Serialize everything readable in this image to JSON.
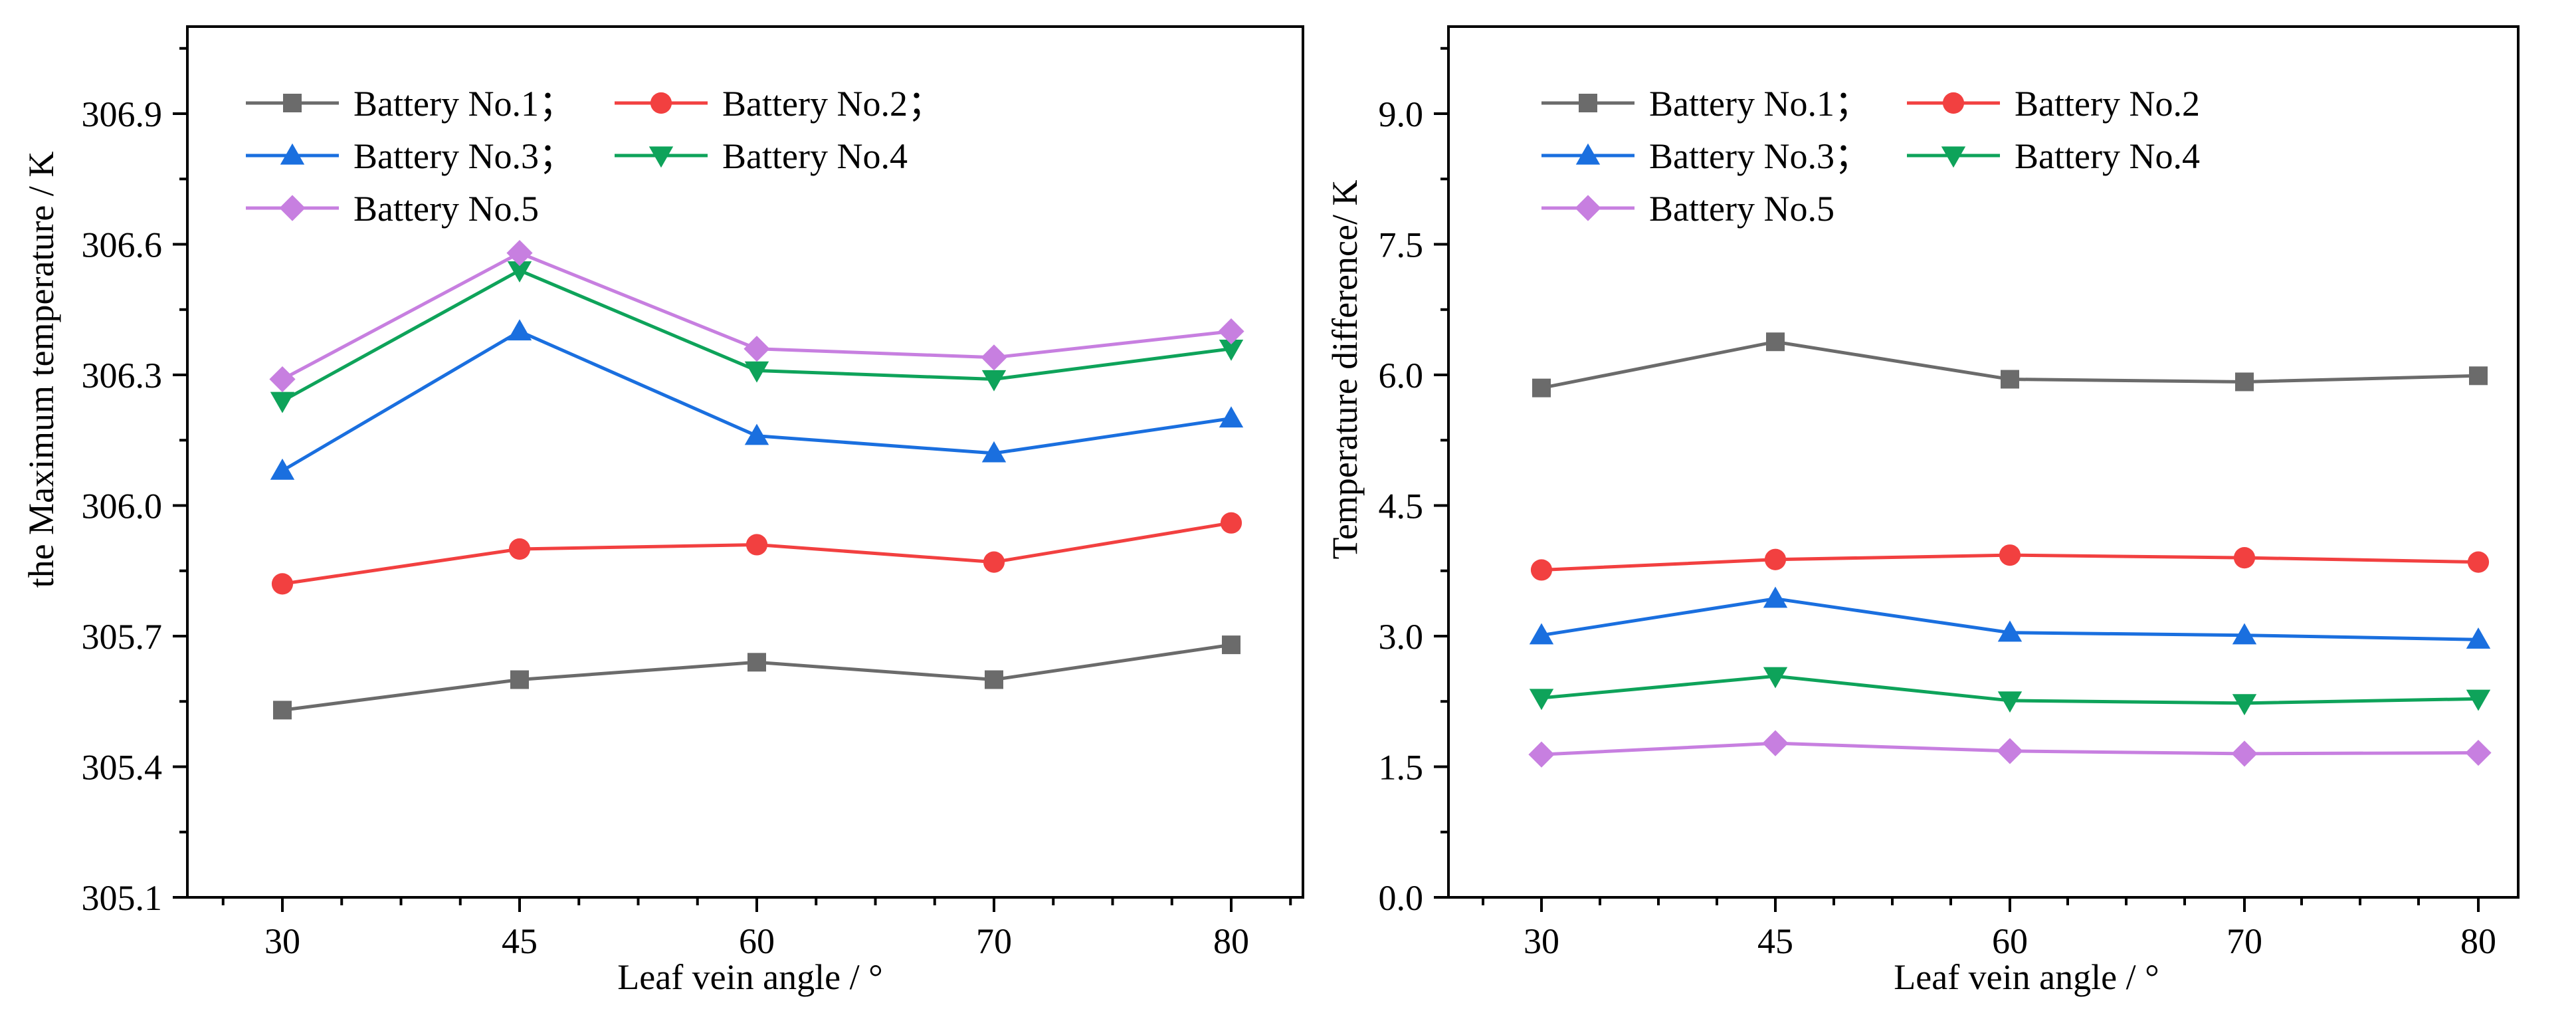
{
  "chart_data": [
    {
      "type": "line",
      "title": "",
      "xlabel": "Leaf vein angle / °",
      "ylabel": "the Maximum temperature / K",
      "categories": [
        "30",
        "45",
        "60",
        "70",
        "80"
      ],
      "ylim": [
        305.1,
        307.1
      ],
      "yticks": [
        305.1,
        305.4,
        305.7,
        306.0,
        306.3,
        306.6,
        306.9
      ],
      "ytick_labels": [
        "305.1",
        "305.4",
        "305.7",
        "306.0",
        "306.3",
        "306.6",
        "306.9"
      ],
      "legend_position": "top-left",
      "series": [
        {
          "name": "Battery No.1；",
          "color": "#6b6b6b",
          "marker": "square",
          "values": [
            305.53,
            305.6,
            305.64,
            305.6,
            305.68
          ]
        },
        {
          "name": "Battery No.2；",
          "color": "#f24040",
          "marker": "circle",
          "values": [
            305.82,
            305.9,
            305.91,
            305.87,
            305.96
          ]
        },
        {
          "name": "Battery No.3；",
          "color": "#1a6fdf",
          "marker": "triangle-up",
          "values": [
            306.08,
            306.4,
            306.16,
            306.12,
            306.2
          ]
        },
        {
          "name": "Battery No.4",
          "color": "#0ea35a",
          "marker": "triangle-down",
          "values": [
            306.24,
            306.54,
            306.31,
            306.29,
            306.36
          ]
        },
        {
          "name": "Battery No.5",
          "color": "#c77fe0",
          "marker": "diamond",
          "values": [
            306.29,
            306.58,
            306.36,
            306.34,
            306.4
          ]
        }
      ]
    },
    {
      "type": "line",
      "title": "",
      "xlabel": "Leaf vein angle / °",
      "ylabel": "Temperature difference/ K",
      "categories": [
        "30",
        "45",
        "60",
        "70",
        "80"
      ],
      "ylim": [
        0,
        10
      ],
      "yticks": [
        0,
        1.5,
        3.0,
        4.5,
        6.0,
        7.5,
        9.0
      ],
      "ytick_labels": [
        "0.0",
        "1.5",
        "3.0",
        "4.5",
        "6.0",
        "7.5",
        "9.0"
      ],
      "legend_position": "top-left",
      "series": [
        {
          "name": "Battery No.1；",
          "color": "#6b6b6b",
          "marker": "square",
          "values": [
            5.85,
            6.38,
            5.95,
            5.92,
            5.99
          ]
        },
        {
          "name": "Battery No.2",
          "color": "#f24040",
          "marker": "circle",
          "values": [
            3.76,
            3.88,
            3.93,
            3.9,
            3.85
          ]
        },
        {
          "name": "Battery No.3；",
          "color": "#1a6fdf",
          "marker": "triangle-up",
          "values": [
            3.01,
            3.43,
            3.04,
            3.01,
            2.96
          ]
        },
        {
          "name": "Battery No.4",
          "color": "#0ea35a",
          "marker": "triangle-down",
          "values": [
            2.29,
            2.54,
            2.26,
            2.23,
            2.28
          ]
        },
        {
          "name": "Battery No.5",
          "color": "#c77fe0",
          "marker": "diamond",
          "values": [
            1.64,
            1.77,
            1.68,
            1.65,
            1.66
          ]
        }
      ]
    }
  ]
}
